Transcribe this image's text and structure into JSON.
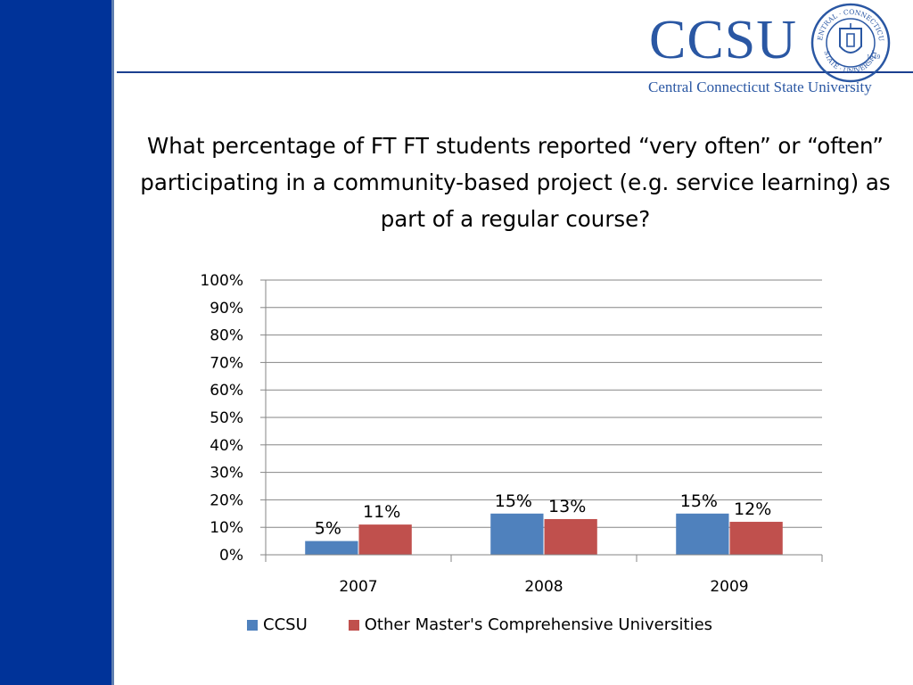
{
  "logo": {
    "wordmark": "CCSU",
    "subtitle": "Central Connecticut State University",
    "seal_text_top": "CENTRAL · CONNECTICUT",
    "seal_text_bottom": "STATE · UNIVERSITY",
    "seal_year": "1849"
  },
  "colors": {
    "sidebar": "#003399",
    "brand": "#2a57a3",
    "series_ccsu": "#4f81bd",
    "series_other": "#c0504d"
  },
  "chart_data": {
    "type": "bar",
    "title": "What percentage of FT FT students reported “very often” or “often” participating in a community-based project (e.g. service learning) as part of a regular course?",
    "categories": [
      "2007",
      "2008",
      "2009"
    ],
    "series": [
      {
        "name": "CCSU",
        "values": [
          5,
          15,
          15
        ],
        "labels": [
          "5%",
          "15%",
          "15%"
        ]
      },
      {
        "name": "Other Master's Comprehensive Universities",
        "values": [
          11,
          13,
          12
        ],
        "labels": [
          "11%",
          "13%",
          "12%"
        ]
      }
    ],
    "ylim": [
      0,
      100
    ],
    "yticks": [
      0,
      10,
      20,
      30,
      40,
      50,
      60,
      70,
      80,
      90,
      100
    ],
    "ytick_labels": [
      "0%",
      "10%",
      "20%",
      "30%",
      "40%",
      "50%",
      "60%",
      "70%",
      "80%",
      "90%",
      "100%"
    ],
    "grid": true,
    "legend_position": "bottom"
  }
}
